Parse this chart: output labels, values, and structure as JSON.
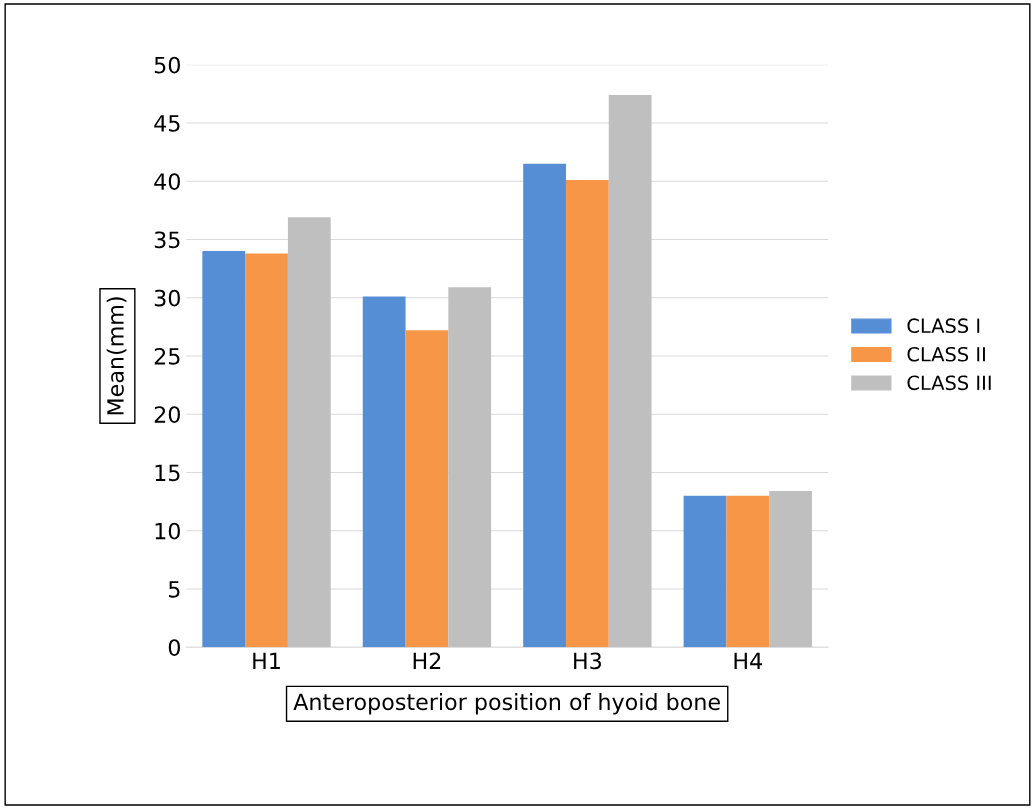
{
  "chart_data": {
    "type": "bar",
    "xlabel": "Anteroposterior position of hyoid bone",
    "ylabel": "Mean(mm)",
    "categories": [
      "H1",
      "H2",
      "H3",
      "H4"
    ],
    "series": [
      {
        "name": "CLASS I",
        "color": "#558ed5",
        "values": [
          34.0,
          30.1,
          41.5,
          13.0
        ]
      },
      {
        "name": "CLASS II",
        "color": "#f79646",
        "values": [
          33.8,
          27.2,
          40.1,
          13.0
        ]
      },
      {
        "name": "CLASS III",
        "color": "#bfbfbf",
        "values": [
          36.9,
          30.9,
          47.4,
          13.4
        ]
      }
    ],
    "ylim": [
      0,
      50
    ],
    "yticks": [
      0,
      5,
      10,
      15,
      20,
      25,
      30,
      35,
      40,
      45,
      50
    ],
    "grid": "y",
    "legend": "right"
  }
}
